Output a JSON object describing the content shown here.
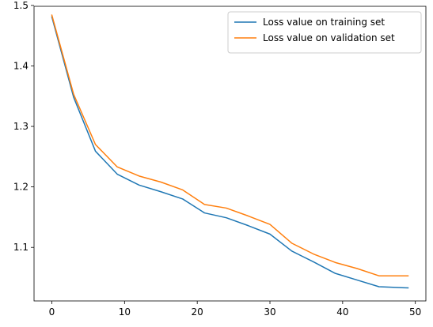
{
  "chart_data": {
    "type": "line",
    "title": "",
    "xlabel": "",
    "ylabel": "",
    "xlim": [
      -2.45,
      51.45
    ],
    "ylim": [
      1.0115,
      1.4985
    ],
    "x_ticks": [
      0,
      10,
      20,
      30,
      40,
      50
    ],
    "y_ticks": [
      1.1,
      1.2,
      1.3,
      1.4,
      1.5
    ],
    "x_tick_labels": [
      "0",
      "10",
      "20",
      "30",
      "40",
      "50"
    ],
    "y_tick_labels": [
      "1.1",
      "1.2",
      "1.3",
      "1.4",
      "1.5"
    ],
    "grid": false,
    "legend": "top-right",
    "series": [
      {
        "name": "Loss value on training set",
        "color": "#1f77b4",
        "x": [
          0,
          3,
          6,
          9,
          12,
          15,
          18,
          21,
          24,
          27,
          30,
          33,
          36,
          39,
          42,
          45,
          49
        ],
        "y": [
          1.481,
          1.348,
          1.259,
          1.221,
          1.203,
          1.192,
          1.18,
          1.157,
          1.149,
          1.136,
          1.122,
          1.094,
          1.076,
          1.057,
          1.046,
          1.035,
          1.033
        ]
      },
      {
        "name": "Loss value on validation set",
        "color": "#ff7f0e",
        "x": [
          0,
          3,
          6,
          9,
          12,
          15,
          18,
          21,
          24,
          27,
          30,
          33,
          36,
          39,
          42,
          45,
          49
        ],
        "y": [
          1.484,
          1.353,
          1.27,
          1.233,
          1.218,
          1.208,
          1.195,
          1.171,
          1.165,
          1.152,
          1.138,
          1.107,
          1.089,
          1.075,
          1.065,
          1.053,
          1.053
        ]
      }
    ]
  }
}
